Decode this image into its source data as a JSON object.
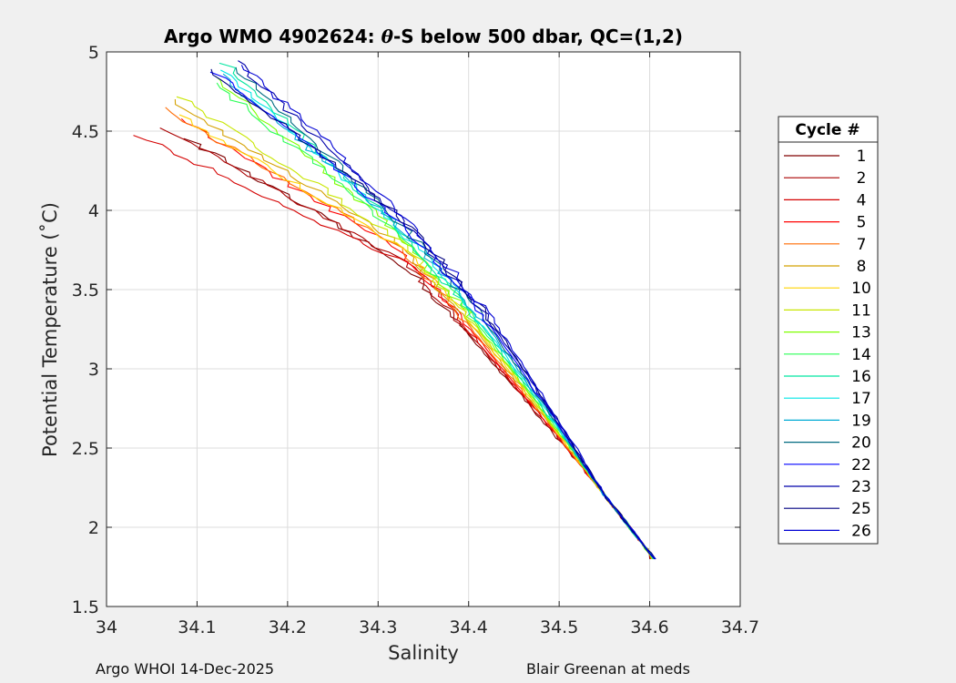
{
  "chart_data": {
    "type": "line",
    "title": "Argo WMO 4902624: θ-S below 500 dbar,  QC=(1,2)",
    "title_parts": {
      "prefix": "Argo WMO 4902624: ",
      "theta": "θ",
      "suffix": "-S below 500 dbar,  QC=(1,2)"
    },
    "xlabel": "Salinity",
    "ylabel": "Potential Temperature (˚C)",
    "xlim": [
      34,
      34.7
    ],
    "ylim": [
      1.5,
      5
    ],
    "xticks": [
      "34",
      "34.1",
      "34.2",
      "34.3",
      "34.4",
      "34.5",
      "34.6",
      "34.7"
    ],
    "yticks": [
      "1.5",
      "2",
      "2.5",
      "3",
      "3.5",
      "4",
      "4.5",
      "5"
    ],
    "grid": true,
    "legend_title": "Cycle #",
    "legend_position": "right-outside",
    "series": [
      {
        "name": "1",
        "color": "#800000",
        "start": [
          34.09,
          4.45
        ]
      },
      {
        "name": "2",
        "color": "#aa0000",
        "start": [
          34.06,
          4.52
        ]
      },
      {
        "name": "4",
        "color": "#d40000",
        "start": [
          34.035,
          4.47
        ]
      },
      {
        "name": "5",
        "color": "#ff0000",
        "start": [
          34.08,
          4.58
        ]
      },
      {
        "name": "7",
        "color": "#ff6a00",
        "start": [
          34.06,
          4.65
        ]
      },
      {
        "name": "8",
        "color": "#d4a000",
        "start": [
          34.07,
          4.7
        ]
      },
      {
        "name": "10",
        "color": "#ffd400",
        "start": [
          34.08,
          4.6
        ]
      },
      {
        "name": "11",
        "color": "#c8e600",
        "start": [
          34.08,
          4.72
        ]
      },
      {
        "name": "13",
        "color": "#7fff00",
        "start": [
          34.115,
          4.85
        ]
      },
      {
        "name": "14",
        "color": "#2aff55",
        "start": [
          34.12,
          4.8
        ]
      },
      {
        "name": "16",
        "color": "#00e6a0",
        "start": [
          34.13,
          4.93
        ]
      },
      {
        "name": "17",
        "color": "#00e6e6",
        "start": [
          34.13,
          4.88
        ]
      },
      {
        "name": "19",
        "color": "#00aad4",
        "start": [
          34.125,
          4.86
        ]
      },
      {
        "name": "20",
        "color": "#006a80",
        "start": [
          34.14,
          4.9
        ]
      },
      {
        "name": "22",
        "color": "#0000ff",
        "start": [
          34.12,
          4.87
        ]
      },
      {
        "name": "23",
        "color": "#0000aa",
        "start": [
          34.14,
          4.95
        ]
      },
      {
        "name": "25",
        "color": "#000080",
        "start": [
          34.115,
          4.89
        ]
      },
      {
        "name": "26",
        "color": "#0000d4",
        "start": [
          34.15,
          4.92
        ]
      }
    ]
  },
  "footer": {
    "left": "Argo WHOI 14-Dec-2025",
    "right": "Blair Greenan at meds"
  }
}
